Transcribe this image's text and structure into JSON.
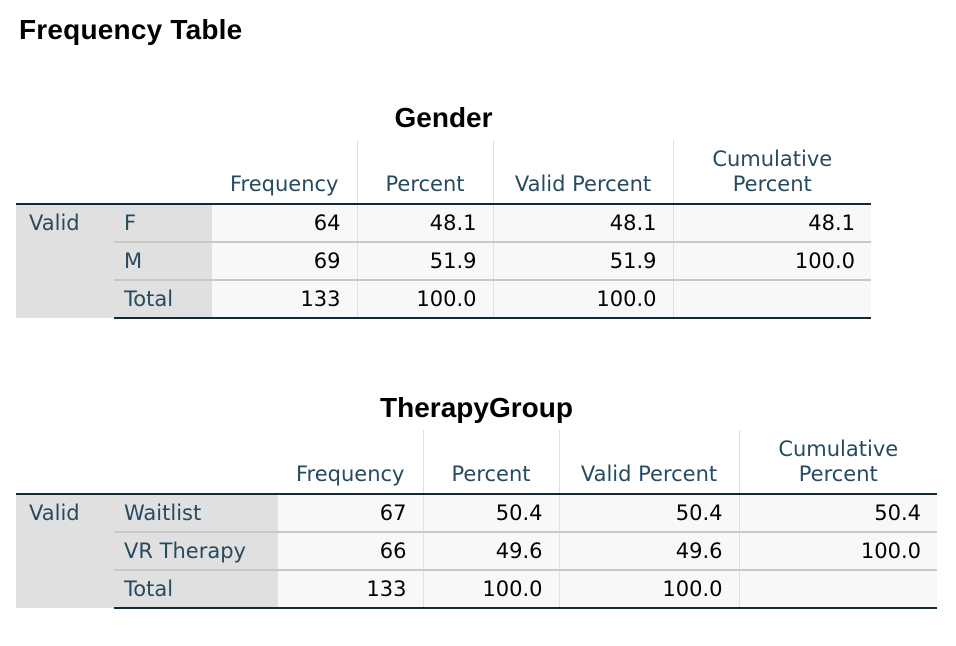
{
  "page_title": "Frequency Table",
  "tables": [
    {
      "title": "Gender",
      "columns": [
        "Frequency",
        "Percent",
        "Valid Percent",
        "Cumulative Percent"
      ],
      "group_label": "Valid",
      "rows": [
        {
          "label": "F",
          "frequency": "64",
          "percent": "48.1",
          "valid_percent": "48.1",
          "cumulative_percent": "48.1"
        },
        {
          "label": "M",
          "frequency": "69",
          "percent": "51.9",
          "valid_percent": "51.9",
          "cumulative_percent": "100.0"
        },
        {
          "label": "Total",
          "frequency": "133",
          "percent": "100.0",
          "valid_percent": "100.0",
          "cumulative_percent": ""
        }
      ]
    },
    {
      "title": "TherapyGroup",
      "columns": [
        "Frequency",
        "Percent",
        "Valid Percent",
        "Cumulative Percent"
      ],
      "group_label": "Valid",
      "rows": [
        {
          "label": "Waitlist",
          "frequency": "67",
          "percent": "50.4",
          "valid_percent": "50.4",
          "cumulative_percent": "50.4"
        },
        {
          "label": "VR Therapy",
          "frequency": "66",
          "percent": "49.6",
          "valid_percent": "49.6",
          "cumulative_percent": "100.0"
        },
        {
          "label": "Total",
          "frequency": "133",
          "percent": "100.0",
          "valid_percent": "100.0",
          "cumulative_percent": ""
        }
      ]
    }
  ]
}
